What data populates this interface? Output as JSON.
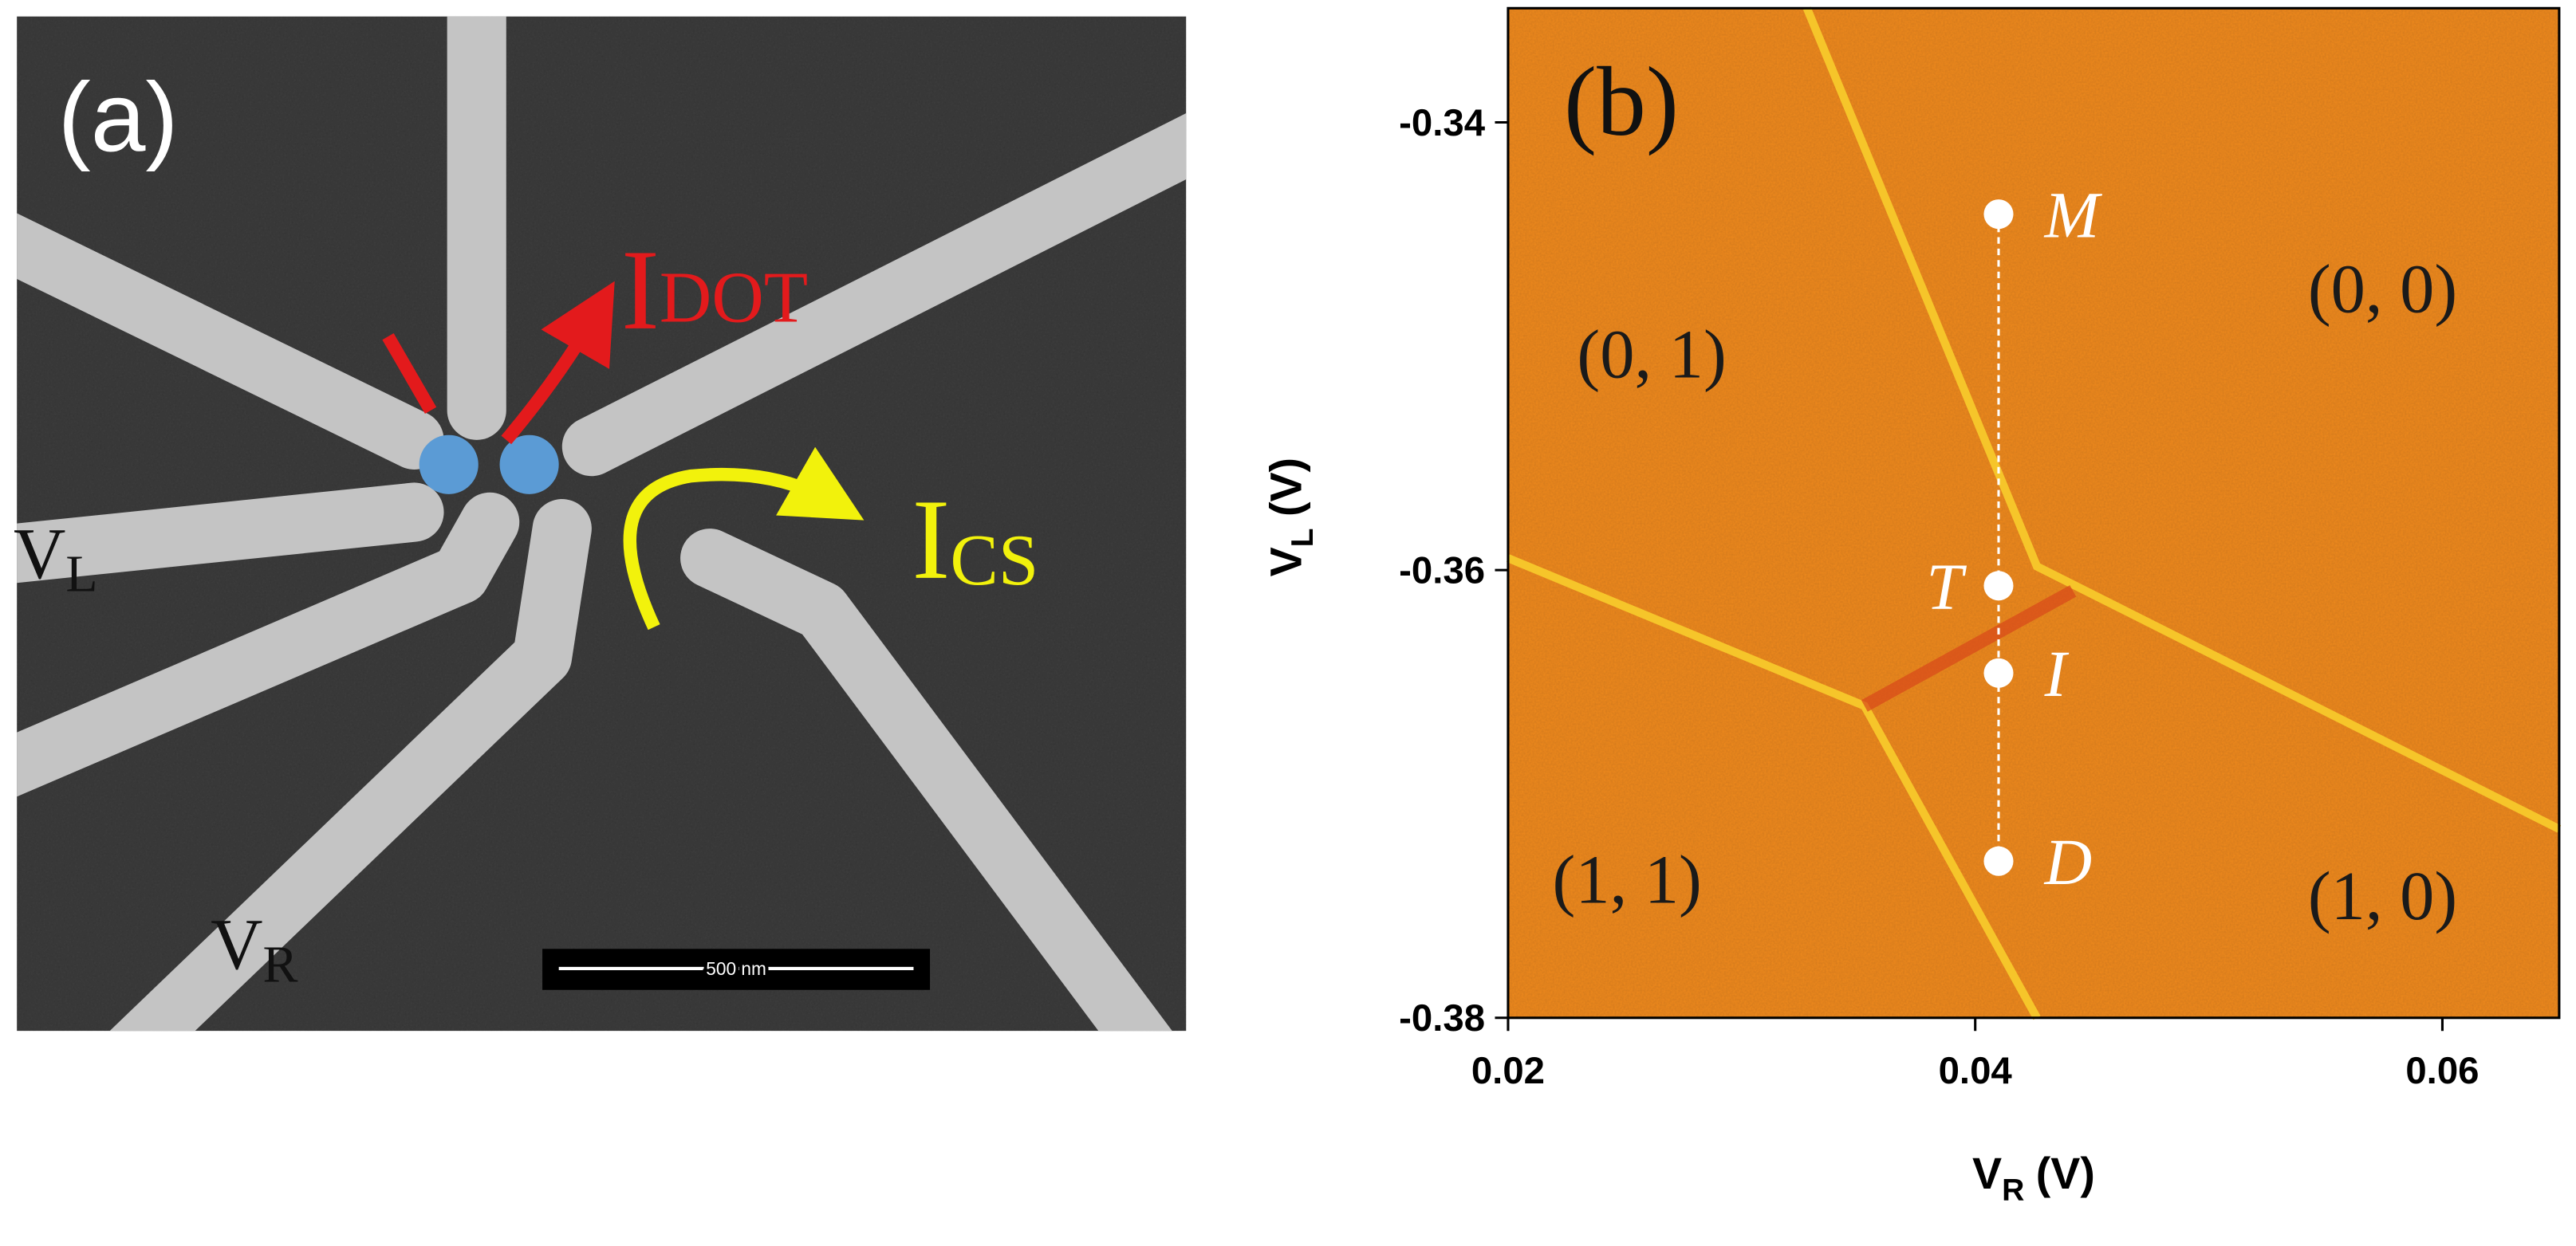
{
  "panel_a": {
    "label": "(a)",
    "dot_current": {
      "main": "I",
      "sub": "DOT"
    },
    "sensor_current": {
      "main": "I",
      "sub": "CS"
    },
    "left_gate": {
      "main": "V",
      "sub": "L"
    },
    "right_gate": {
      "main": "V",
      "sub": "R"
    },
    "scale_bar": "500 nm"
  },
  "chart_data": {
    "type": "scatter",
    "panel_label": "(b)",
    "xlabel": {
      "main": "V",
      "sub": "R",
      "unit": "(V)"
    },
    "ylabel": {
      "main": "V",
      "sub": "L",
      "unit": "(V)"
    },
    "x": [
      0.041,
      0.041,
      0.041,
      0.041
    ],
    "values": [
      -0.3441,
      -0.3607,
      -0.3646,
      -0.373
    ],
    "point_labels": [
      "M",
      "T",
      "I",
      "D"
    ],
    "color": "#ffffff",
    "xlim": [
      0.02,
      0.065
    ],
    "xticks": [
      0.02,
      0.04,
      0.06
    ],
    "ylim": [
      -0.38,
      -0.3349
    ],
    "yticks": [
      -0.34,
      -0.36,
      -0.38
    ],
    "annotations": [
      "(0, 1)",
      "(0, 0)",
      "(1, 1)",
      "(1, 0)"
    ]
  }
}
